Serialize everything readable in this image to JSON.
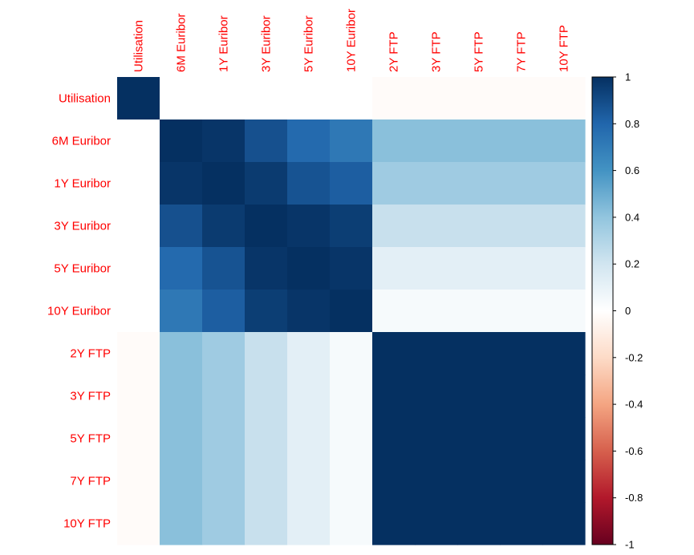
{
  "chart_data": {
    "type": "heatmap",
    "title": "",
    "xlabel": "",
    "ylabel": "",
    "variables": [
      "Utilisation",
      "6M Euribor",
      "1Y Euribor",
      "3Y Euribor",
      "5Y Euribor",
      "10Y Euribor",
      "2Y FTP",
      "3Y FTP",
      "5Y FTP",
      "7Y FTP",
      "10Y FTP"
    ],
    "matrix": [
      [
        1.0,
        0.0,
        0.0,
        0.0,
        0.0,
        0.0,
        -0.02,
        -0.02,
        -0.02,
        -0.02,
        -0.02
      ],
      [
        0.0,
        1.0,
        0.98,
        0.88,
        0.78,
        0.72,
        0.42,
        0.42,
        0.42,
        0.42,
        0.42
      ],
      [
        0.0,
        0.98,
        1.0,
        0.96,
        0.87,
        0.83,
        0.36,
        0.36,
        0.36,
        0.36,
        0.36
      ],
      [
        0.0,
        0.88,
        0.96,
        1.0,
        0.98,
        0.95,
        0.23,
        0.23,
        0.23,
        0.23,
        0.23
      ],
      [
        0.0,
        0.78,
        0.87,
        0.98,
        1.0,
        0.98,
        0.12,
        0.12,
        0.12,
        0.12,
        0.12
      ],
      [
        0.0,
        0.72,
        0.83,
        0.95,
        0.98,
        1.0,
        0.04,
        0.04,
        0.04,
        0.04,
        0.04
      ],
      [
        -0.02,
        0.42,
        0.36,
        0.23,
        0.12,
        0.04,
        1.0,
        1.0,
        1.0,
        1.0,
        1.0
      ],
      [
        -0.02,
        0.42,
        0.36,
        0.23,
        0.12,
        0.04,
        1.0,
        1.0,
        1.0,
        1.0,
        1.0
      ],
      [
        -0.02,
        0.42,
        0.36,
        0.23,
        0.12,
        0.04,
        1.0,
        1.0,
        1.0,
        1.0,
        1.0
      ],
      [
        -0.02,
        0.42,
        0.36,
        0.23,
        0.12,
        0.04,
        1.0,
        1.0,
        1.0,
        1.0,
        1.0
      ],
      [
        -0.02,
        0.42,
        0.36,
        0.23,
        0.12,
        0.04,
        1.0,
        1.0,
        1.0,
        1.0,
        1.0
      ]
    ],
    "value_range": [
      -1,
      1
    ],
    "label_color": "#ff0000",
    "colorbar": {
      "ticks": [
        "1",
        "0.8",
        "0.6",
        "0.4",
        "0.2",
        "0",
        "-0.2",
        "-0.4",
        "-0.6",
        "-0.8",
        "-1"
      ],
      "tick_values": [
        1,
        0.8,
        0.6,
        0.4,
        0.2,
        0,
        -0.2,
        -0.4,
        -0.6,
        -0.8,
        -1
      ],
      "palette": [
        "#67001F",
        "#B2182B",
        "#D6604D",
        "#F4A582",
        "#FDDBC7",
        "#FFFFFF",
        "#D1E5F0",
        "#92C5DE",
        "#4393C3",
        "#2166AC",
        "#053061"
      ]
    },
    "legend": "right",
    "grid": false
  }
}
